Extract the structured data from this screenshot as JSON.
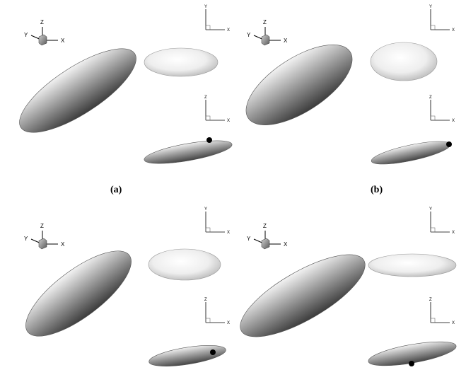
{
  "axis_names": {
    "x": "X",
    "y": "Y",
    "z": "Z"
  },
  "panels": [
    {
      "label": "(a)"
    },
    {
      "label": "(b)"
    },
    {
      "label": ""
    },
    {
      "label": ""
    }
  ],
  "colors": {
    "dark_body_light": "#f2f2f2",
    "dark_body_mid": "#a8a8a8",
    "dark_body_shadow": "#4a4a4a",
    "light_body_light": "#ffffff",
    "light_body_mid": "#ececec",
    "light_body_shadow": "#bdbdbd",
    "marker": "#000000",
    "axis_cube": "#777777"
  }
}
